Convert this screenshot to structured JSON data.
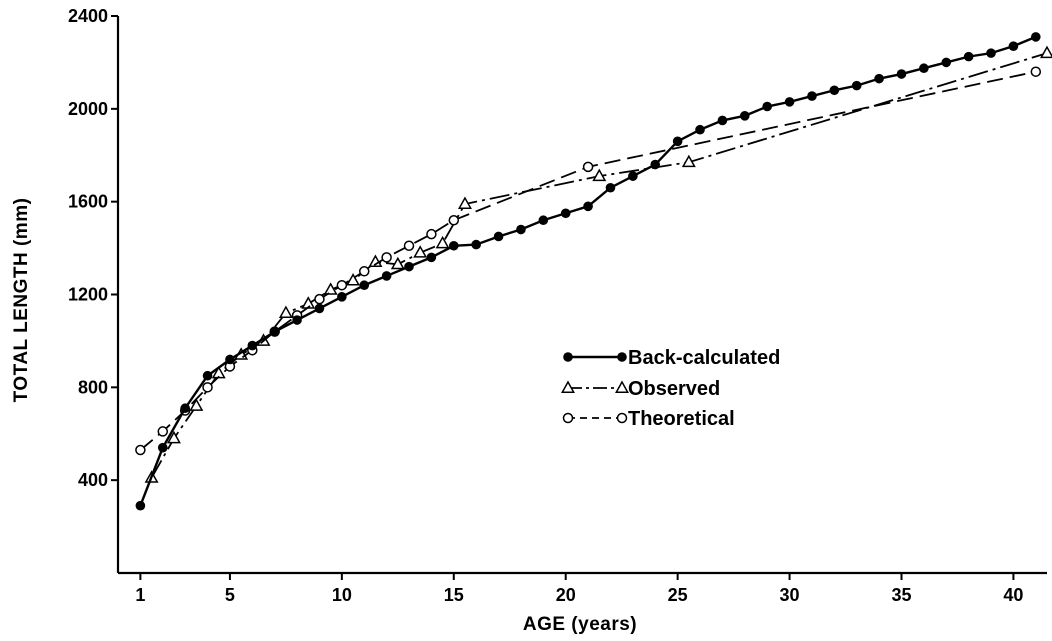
{
  "chart_data": {
    "type": "line",
    "xlabel": "AGE (years)",
    "ylabel": "TOTAL LENGTH (mm)",
    "xlim": [
      0,
      41.5
    ],
    "ylim": [
      0,
      2400
    ],
    "x_ticks": [
      1,
      5,
      10,
      15,
      20,
      25,
      30,
      35,
      40
    ],
    "y_ticks": [
      400,
      800,
      1200,
      1600,
      2000,
      2400
    ],
    "grid": false,
    "legend_position": "center-right",
    "series": [
      {
        "name": "Back-calculated",
        "line_style": "solid",
        "marker": "filled-circle",
        "x": [
          1,
          2,
          3,
          4,
          5,
          6,
          7,
          8,
          9,
          10,
          11,
          12,
          13,
          14,
          15,
          16,
          17,
          18,
          19,
          20,
          21,
          22,
          23,
          24,
          25,
          26,
          27,
          28,
          29,
          30,
          31,
          32,
          33,
          34,
          35,
          36,
          37,
          38,
          39,
          40,
          41
        ],
        "y": [
          290,
          540,
          710,
          850,
          920,
          980,
          1040,
          1090,
          1140,
          1190,
          1240,
          1280,
          1320,
          1360,
          1410,
          1415,
          1450,
          1480,
          1520,
          1550,
          1580,
          1660,
          1710,
          1760,
          1860,
          1910,
          1950,
          1970,
          2010,
          2030,
          2055,
          2080,
          2100,
          2130,
          2150,
          2175,
          2200,
          2225,
          2240,
          2270,
          2310
        ]
      },
      {
        "name": "Observed",
        "line_style": "dash-dot",
        "marker": "open-triangle",
        "x": [
          1.5,
          2.5,
          3.5,
          4.5,
          5.5,
          6.5,
          7.5,
          8.5,
          9.5,
          10.5,
          11.5,
          12.5,
          13.5,
          14.5,
          15.5,
          21.5,
          25.5,
          41.5
        ],
        "y": [
          410,
          580,
          720,
          860,
          940,
          1000,
          1120,
          1160,
          1220,
          1260,
          1340,
          1330,
          1380,
          1420,
          1590,
          1710,
          1770,
          2240
        ]
      },
      {
        "name": "Theoretical",
        "line_style": "dashed",
        "marker": "open-circle",
        "x": [
          1,
          2,
          3,
          4,
          5,
          6,
          7,
          8,
          9,
          10,
          11,
          12,
          13,
          14,
          15,
          21,
          41
        ],
        "y": [
          530,
          610,
          700,
          800,
          890,
          960,
          1040,
          1110,
          1180,
          1240,
          1300,
          1360,
          1410,
          1460,
          1520,
          1750,
          2160
        ]
      }
    ]
  }
}
